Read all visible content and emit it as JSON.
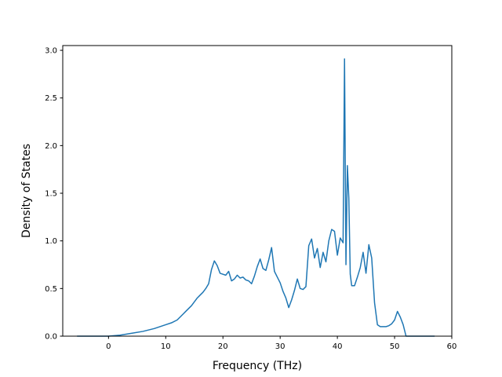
{
  "chart_data": {
    "type": "line",
    "title": "",
    "xlabel": "Frequency (THz)",
    "ylabel": "Density of States",
    "xlim": [
      -8,
      60
    ],
    "ylim": [
      0,
      3.05
    ],
    "xticks": [
      0,
      10,
      20,
      30,
      40,
      50,
      60
    ],
    "yticks": [
      0.0,
      0.5,
      1.0,
      1.5,
      2.0,
      2.5,
      3.0
    ],
    "xtick_labels": [
      "0",
      "10",
      "20",
      "30",
      "40",
      "50",
      "60"
    ],
    "ytick_labels": [
      "0.0",
      "0.5",
      "1.0",
      "1.5",
      "2.0",
      "2.5",
      "3.0"
    ],
    "grid": false,
    "line_color": "#1f77b4",
    "series": [
      {
        "x": [
          -5.5,
          0,
          2,
          4,
          6,
          8,
          10,
          11,
          12,
          12.5,
          13,
          13.5,
          14,
          14.5,
          15,
          15.5,
          16,
          16.5,
          17,
          17.5,
          18,
          18.5,
          19,
          19.5,
          20,
          20.5,
          21,
          21.5,
          22,
          22.5,
          23,
          23.5,
          24,
          24.5,
          25,
          25.5,
          26,
          26.5,
          27,
          27.5,
          28,
          28.5,
          29,
          29.5,
          30,
          30.5,
          31,
          31.5,
          32,
          32.5,
          33,
          33.5,
          34,
          34.5,
          35,
          35.5,
          36,
          36.5,
          37,
          37.5,
          38,
          38.5,
          39,
          39.5,
          40,
          40.5,
          41,
          41.25,
          41.5,
          41.75,
          42,
          42.25,
          42.5,
          43,
          43.5,
          44,
          44.5,
          45,
          45.5,
          46,
          46.5,
          47,
          47.5,
          48,
          48.5,
          49,
          49.5,
          50,
          50.5,
          51,
          51.5,
          52,
          52.5,
          57
        ],
        "y": [
          0.0,
          0.0,
          0.01,
          0.03,
          0.05,
          0.08,
          0.12,
          0.14,
          0.17,
          0.2,
          0.23,
          0.26,
          0.29,
          0.32,
          0.36,
          0.4,
          0.43,
          0.46,
          0.5,
          0.55,
          0.7,
          0.79,
          0.74,
          0.66,
          0.65,
          0.64,
          0.68,
          0.58,
          0.6,
          0.64,
          0.61,
          0.62,
          0.59,
          0.58,
          0.55,
          0.63,
          0.73,
          0.81,
          0.71,
          0.69,
          0.8,
          0.93,
          0.68,
          0.62,
          0.56,
          0.47,
          0.4,
          0.3,
          0.38,
          0.48,
          0.6,
          0.5,
          0.49,
          0.52,
          0.95,
          1.02,
          0.82,
          0.92,
          0.72,
          0.88,
          0.78,
          1.0,
          1.12,
          1.1,
          0.85,
          1.03,
          0.98,
          2.91,
          0.75,
          1.79,
          1.45,
          0.65,
          0.53,
          0.53,
          0.62,
          0.72,
          0.88,
          0.66,
          0.96,
          0.82,
          0.35,
          0.12,
          0.1,
          0.1,
          0.1,
          0.11,
          0.13,
          0.17,
          0.26,
          0.2,
          0.12,
          0.0,
          0.0,
          0.0
        ]
      }
    ]
  }
}
